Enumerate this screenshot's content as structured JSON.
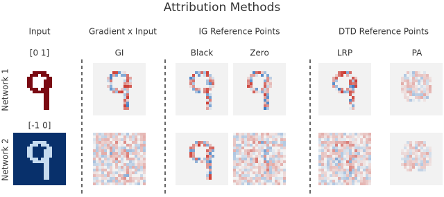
{
  "title": "Attribution Methods",
  "groups": [
    "Input",
    "Gradient x Input",
    "IG Reference Points",
    "DTD Reference Points"
  ],
  "subheaders": [
    "[0 1]",
    "GI",
    "Black",
    "Zero",
    "LRP",
    "PA"
  ],
  "input_2_label": "[-1 0]",
  "rows": [
    "Network 1",
    "Network 2"
  ]
}
